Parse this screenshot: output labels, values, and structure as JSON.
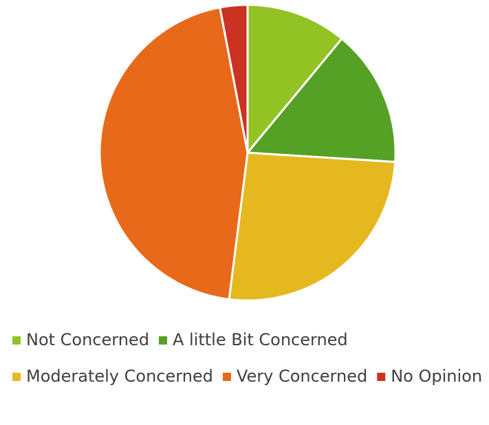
{
  "chart_data": {
    "type": "pie",
    "categories": [
      "Not Concerned",
      "A little Bit Concerned",
      "Moderately Concerned",
      "Very Concerned",
      "No Opinion"
    ],
    "values": [
      11,
      15,
      26,
      45,
      3
    ],
    "colors": [
      "#93c225",
      "#55a125",
      "#e5b820",
      "#e8691a",
      "#cc3222"
    ],
    "legend": "bottom"
  }
}
